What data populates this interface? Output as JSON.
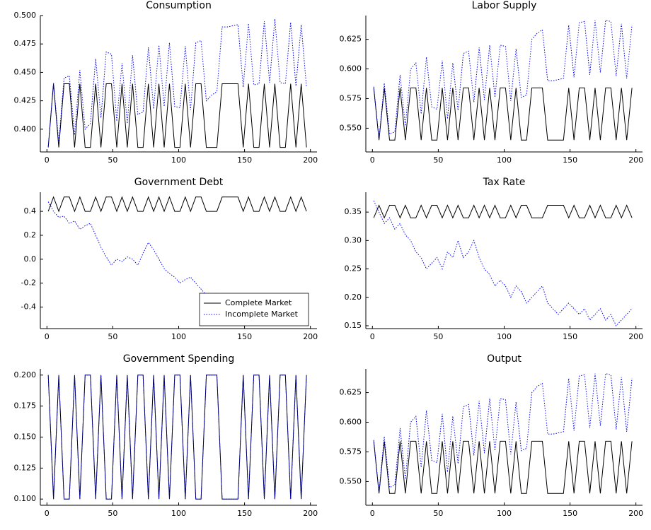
{
  "chart_data": [
    {
      "type": "line",
      "title": "Consumption",
      "xlim": [
        -5,
        205
      ],
      "xticks": [
        0,
        50,
        100,
        150,
        200
      ],
      "ylim": [
        0.38,
        0.5
      ],
      "yticks": [
        {
          "value": 0.4,
          "label": "0.400"
        },
        0.425,
        {
          "value": 0.45,
          "label": "0.450"
        },
        0.475,
        {
          "value": 0.5,
          "label": "0.500"
        }
      ],
      "x": [
        1,
        5,
        9,
        13,
        17,
        21,
        25,
        29,
        33,
        37,
        41,
        45,
        49,
        53,
        57,
        61,
        65,
        69,
        73,
        77,
        81,
        85,
        89,
        93,
        97,
        101,
        105,
        109,
        113,
        117,
        121,
        125,
        129,
        133,
        137,
        141,
        145,
        149,
        153,
        157,
        161,
        165,
        169,
        173,
        177,
        181,
        185,
        189,
        193,
        197
      ],
      "series": [
        {
          "name": "Complete Market",
          "color": "#000000",
          "line_style": "solid",
          "values": [
            0.384,
            0.44,
            0.384,
            0.44,
            0.44,
            0.384,
            0.44,
            0.384,
            0.384,
            0.44,
            0.384,
            0.44,
            0.44,
            0.384,
            0.44,
            0.384,
            0.44,
            0.384,
            0.384,
            0.44,
            0.384,
            0.44,
            0.384,
            0.44,
            0.384,
            0.384,
            0.44,
            0.384,
            0.44,
            0.44,
            0.384,
            0.384,
            0.384,
            0.44,
            0.44,
            0.44,
            0.44,
            0.384,
            0.44,
            0.384,
            0.384,
            0.44,
            0.384,
            0.44,
            0.384,
            0.384,
            0.44,
            0.384,
            0.44,
            0.384
          ]
        },
        {
          "name": "Incomplete Market",
          "color": "#0000ff",
          "line_style": "dotted",
          "values": [
            0.385,
            0.441,
            0.388,
            0.445,
            0.447,
            0.395,
            0.452,
            0.4,
            0.405,
            0.462,
            0.41,
            0.468,
            0.466,
            0.407,
            0.458,
            0.405,
            0.465,
            0.413,
            0.415,
            0.472,
            0.418,
            0.474,
            0.42,
            0.476,
            0.42,
            0.419,
            0.473,
            0.417,
            0.476,
            0.478,
            0.425,
            0.43,
            0.433,
            0.49,
            0.49,
            0.491,
            0.492,
            0.437,
            0.493,
            0.439,
            0.44,
            0.495,
            0.441,
            0.497,
            0.441,
            0.44,
            0.494,
            0.438,
            0.492,
            0.437
          ]
        }
      ]
    },
    {
      "type": "line",
      "title": "Labor Supply",
      "xlim": [
        -5,
        205
      ],
      "xticks": [
        0,
        50,
        100,
        150,
        200
      ],
      "ylim": [
        0.53,
        0.645
      ],
      "yticks": [
        {
          "value": 0.55,
          "label": "0.550"
        },
        0.575,
        {
          "value": 0.6,
          "label": "0.600"
        },
        0.625
      ],
      "x": [
        1,
        5,
        9,
        13,
        17,
        21,
        25,
        29,
        33,
        37,
        41,
        45,
        49,
        53,
        57,
        61,
        65,
        69,
        73,
        77,
        81,
        85,
        89,
        93,
        97,
        101,
        105,
        109,
        113,
        117,
        121,
        125,
        129,
        133,
        137,
        141,
        145,
        149,
        153,
        157,
        161,
        165,
        169,
        173,
        177,
        181,
        185,
        189,
        193,
        197
      ],
      "series": [
        {
          "name": "Complete Market",
          "color": "#000000",
          "line_style": "solid",
          "values": [
            0.584,
            0.54,
            0.584,
            0.54,
            0.54,
            0.584,
            0.54,
            0.584,
            0.584,
            0.54,
            0.584,
            0.54,
            0.54,
            0.584,
            0.54,
            0.584,
            0.54,
            0.584,
            0.584,
            0.54,
            0.584,
            0.54,
            0.584,
            0.54,
            0.584,
            0.584,
            0.54,
            0.584,
            0.54,
            0.54,
            0.584,
            0.584,
            0.584,
            0.54,
            0.54,
            0.54,
            0.54,
            0.584,
            0.54,
            0.584,
            0.584,
            0.54,
            0.584,
            0.54,
            0.584,
            0.584,
            0.54,
            0.584,
            0.54,
            0.584
          ]
        },
        {
          "name": "Incomplete Market",
          "color": "#0000ff",
          "line_style": "dotted",
          "values": [
            0.585,
            0.541,
            0.588,
            0.545,
            0.547,
            0.595,
            0.552,
            0.6,
            0.605,
            0.562,
            0.61,
            0.568,
            0.566,
            0.607,
            0.558,
            0.605,
            0.565,
            0.613,
            0.615,
            0.572,
            0.618,
            0.574,
            0.62,
            0.576,
            0.62,
            0.619,
            0.573,
            0.617,
            0.576,
            0.578,
            0.625,
            0.63,
            0.633,
            0.59,
            0.59,
            0.591,
            0.592,
            0.637,
            0.593,
            0.639,
            0.64,
            0.595,
            0.641,
            0.597,
            0.641,
            0.64,
            0.594,
            0.638,
            0.592,
            0.637
          ]
        }
      ]
    },
    {
      "type": "line",
      "title": "Government Debt",
      "xlim": [
        -5,
        205
      ],
      "xticks": [
        0,
        50,
        100,
        150,
        200
      ],
      "ylim": [
        -0.58,
        0.56
      ],
      "yticks": [
        -0.4,
        -0.2,
        {
          "value": 0,
          "label": "0.0"
        },
        0.2,
        0.4
      ],
      "legend": "bottom-right",
      "x": [
        1,
        5,
        9,
        13,
        17,
        21,
        25,
        29,
        33,
        37,
        41,
        45,
        49,
        53,
        57,
        61,
        65,
        69,
        73,
        77,
        81,
        85,
        89,
        93,
        97,
        101,
        105,
        109,
        113,
        117,
        121,
        125,
        129,
        133,
        137,
        141,
        145,
        149,
        153,
        157,
        161,
        165,
        169,
        173,
        177,
        181,
        185,
        189,
        193,
        197
      ],
      "series": [
        {
          "name": "Complete Market",
          "color": "#000000",
          "line_style": "solid",
          "values": [
            0.4,
            0.52,
            0.4,
            0.52,
            0.52,
            0.4,
            0.52,
            0.4,
            0.4,
            0.52,
            0.4,
            0.52,
            0.52,
            0.4,
            0.52,
            0.4,
            0.52,
            0.4,
            0.4,
            0.52,
            0.4,
            0.52,
            0.4,
            0.52,
            0.4,
            0.4,
            0.52,
            0.4,
            0.52,
            0.52,
            0.4,
            0.4,
            0.4,
            0.52,
            0.52,
            0.52,
            0.52,
            0.4,
            0.52,
            0.4,
            0.4,
            0.52,
            0.4,
            0.52,
            0.4,
            0.4,
            0.52,
            0.4,
            0.52,
            0.4
          ]
        },
        {
          "name": "Incomplete Market",
          "color": "#0000ff",
          "line_style": "dotted",
          "values": [
            0.48,
            0.4,
            0.35,
            0.36,
            0.3,
            0.32,
            0.25,
            0.28,
            0.3,
            0.2,
            0.1,
            0.02,
            -0.05,
            0.0,
            -0.02,
            0.02,
            0.0,
            -0.05,
            0.05,
            0.14,
            0.08,
            0.0,
            -0.08,
            -0.12,
            -0.15,
            -0.2,
            -0.17,
            -0.15,
            -0.2,
            -0.25,
            -0.3,
            -0.32,
            -0.28,
            -0.35,
            -0.36,
            -0.38,
            -0.37,
            -0.4,
            -0.42,
            -0.4,
            -0.43,
            -0.45,
            -0.44,
            -0.47,
            -0.45,
            -0.48,
            -0.5,
            -0.47,
            -0.52,
            -0.48
          ]
        }
      ]
    },
    {
      "type": "line",
      "title": "Tax Rate",
      "xlim": [
        -5,
        205
      ],
      "xticks": [
        0,
        50,
        100,
        150,
        200
      ],
      "ylim": [
        0.145,
        0.385
      ],
      "yticks": [
        0.15,
        {
          "value": 0.2,
          "label": "0.20"
        },
        0.25,
        {
          "value": 0.3,
          "label": "0.30"
        },
        0.35
      ],
      "x": [
        1,
        5,
        9,
        13,
        17,
        21,
        25,
        29,
        33,
        37,
        41,
        45,
        49,
        53,
        57,
        61,
        65,
        69,
        73,
        77,
        81,
        85,
        89,
        93,
        97,
        101,
        105,
        109,
        113,
        117,
        121,
        125,
        129,
        133,
        137,
        141,
        145,
        149,
        153,
        157,
        161,
        165,
        169,
        173,
        177,
        181,
        185,
        189,
        193,
        197
      ],
      "series": [
        {
          "name": "Complete Market",
          "color": "#000000",
          "line_style": "solid",
          "values": [
            0.34,
            0.362,
            0.34,
            0.362,
            0.362,
            0.34,
            0.362,
            0.34,
            0.34,
            0.362,
            0.34,
            0.362,
            0.362,
            0.34,
            0.362,
            0.34,
            0.362,
            0.34,
            0.34,
            0.362,
            0.34,
            0.362,
            0.34,
            0.362,
            0.34,
            0.34,
            0.362,
            0.34,
            0.362,
            0.362,
            0.34,
            0.34,
            0.34,
            0.362,
            0.362,
            0.362,
            0.362,
            0.34,
            0.362,
            0.34,
            0.34,
            0.362,
            0.34,
            0.362,
            0.34,
            0.34,
            0.362,
            0.34,
            0.362,
            0.34
          ]
        },
        {
          "name": "Incomplete Market",
          "color": "#0000ff",
          "line_style": "dotted",
          "values": [
            0.37,
            0.35,
            0.33,
            0.34,
            0.32,
            0.33,
            0.31,
            0.3,
            0.28,
            0.27,
            0.25,
            0.26,
            0.27,
            0.25,
            0.28,
            0.27,
            0.3,
            0.27,
            0.28,
            0.3,
            0.27,
            0.25,
            0.24,
            0.22,
            0.23,
            0.22,
            0.2,
            0.22,
            0.21,
            0.19,
            0.2,
            0.21,
            0.22,
            0.19,
            0.18,
            0.17,
            0.18,
            0.19,
            0.18,
            0.17,
            0.18,
            0.16,
            0.17,
            0.18,
            0.16,
            0.17,
            0.15,
            0.16,
            0.17,
            0.18
          ]
        }
      ]
    },
    {
      "type": "line",
      "title": "Government Spending",
      "xlim": [
        -5,
        205
      ],
      "xticks": [
        0,
        50,
        100,
        150,
        200
      ],
      "ylim": [
        0.095,
        0.205
      ],
      "yticks": [
        {
          "value": 0.1,
          "label": "0.100"
        },
        0.125,
        {
          "value": 0.15,
          "label": "0.150"
        },
        0.175,
        {
          "value": 0.2,
          "label": "0.200"
        }
      ],
      "x": [
        1,
        5,
        9,
        13,
        17,
        21,
        25,
        29,
        33,
        37,
        41,
        45,
        49,
        53,
        57,
        61,
        65,
        69,
        73,
        77,
        81,
        85,
        89,
        93,
        97,
        101,
        105,
        109,
        113,
        117,
        121,
        125,
        129,
        133,
        137,
        141,
        145,
        149,
        153,
        157,
        161,
        165,
        169,
        173,
        177,
        181,
        185,
        189,
        193,
        197
      ],
      "series": [
        {
          "name": "Complete Market",
          "color": "#000000",
          "line_style": "solid",
          "values": [
            0.2,
            0.1,
            0.2,
            0.1,
            0.1,
            0.2,
            0.1,
            0.2,
            0.2,
            0.1,
            0.2,
            0.1,
            0.1,
            0.2,
            0.1,
            0.2,
            0.1,
            0.2,
            0.2,
            0.1,
            0.2,
            0.1,
            0.2,
            0.1,
            0.2,
            0.2,
            0.1,
            0.2,
            0.1,
            0.1,
            0.2,
            0.2,
            0.2,
            0.1,
            0.1,
            0.1,
            0.1,
            0.2,
            0.1,
            0.2,
            0.2,
            0.1,
            0.2,
            0.1,
            0.2,
            0.2,
            0.1,
            0.2,
            0.1,
            0.2
          ]
        },
        {
          "name": "Incomplete Market",
          "color": "#0000ff",
          "line_style": "dotted",
          "values": [
            0.2,
            0.1,
            0.2,
            0.1,
            0.1,
            0.2,
            0.1,
            0.2,
            0.2,
            0.1,
            0.2,
            0.1,
            0.1,
            0.2,
            0.1,
            0.2,
            0.1,
            0.2,
            0.2,
            0.1,
            0.2,
            0.1,
            0.2,
            0.1,
            0.2,
            0.2,
            0.1,
            0.2,
            0.1,
            0.1,
            0.2,
            0.2,
            0.2,
            0.1,
            0.1,
            0.1,
            0.1,
            0.2,
            0.1,
            0.2,
            0.2,
            0.1,
            0.2,
            0.1,
            0.2,
            0.2,
            0.1,
            0.2,
            0.1,
            0.2
          ]
        }
      ]
    },
    {
      "type": "line",
      "title": "Output",
      "xlim": [
        -5,
        205
      ],
      "xticks": [
        0,
        50,
        100,
        150,
        200
      ],
      "ylim": [
        0.53,
        0.645
      ],
      "yticks": [
        {
          "value": 0.55,
          "label": "0.550"
        },
        0.575,
        {
          "value": 0.6,
          "label": "0.600"
        },
        0.625
      ],
      "x": [
        1,
        5,
        9,
        13,
        17,
        21,
        25,
        29,
        33,
        37,
        41,
        45,
        49,
        53,
        57,
        61,
        65,
        69,
        73,
        77,
        81,
        85,
        89,
        93,
        97,
        101,
        105,
        109,
        113,
        117,
        121,
        125,
        129,
        133,
        137,
        141,
        145,
        149,
        153,
        157,
        161,
        165,
        169,
        173,
        177,
        181,
        185,
        189,
        193,
        197
      ],
      "series": [
        {
          "name": "Complete Market",
          "color": "#000000",
          "line_style": "solid",
          "values": [
            0.584,
            0.54,
            0.584,
            0.54,
            0.54,
            0.584,
            0.54,
            0.584,
            0.584,
            0.54,
            0.584,
            0.54,
            0.54,
            0.584,
            0.54,
            0.584,
            0.54,
            0.584,
            0.584,
            0.54,
            0.584,
            0.54,
            0.584,
            0.54,
            0.584,
            0.584,
            0.54,
            0.584,
            0.54,
            0.54,
            0.584,
            0.584,
            0.584,
            0.54,
            0.54,
            0.54,
            0.54,
            0.584,
            0.54,
            0.584,
            0.584,
            0.54,
            0.584,
            0.54,
            0.584,
            0.584,
            0.54,
            0.584,
            0.54,
            0.584
          ]
        },
        {
          "name": "Incomplete Market",
          "color": "#0000ff",
          "line_style": "dotted",
          "values": [
            0.585,
            0.541,
            0.588,
            0.545,
            0.547,
            0.595,
            0.552,
            0.6,
            0.605,
            0.562,
            0.61,
            0.568,
            0.566,
            0.607,
            0.558,
            0.605,
            0.565,
            0.613,
            0.615,
            0.572,
            0.618,
            0.574,
            0.62,
            0.576,
            0.62,
            0.619,
            0.573,
            0.617,
            0.576,
            0.578,
            0.625,
            0.63,
            0.633,
            0.59,
            0.59,
            0.591,
            0.592,
            0.637,
            0.593,
            0.639,
            0.64,
            0.595,
            0.641,
            0.597,
            0.641,
            0.64,
            0.594,
            0.638,
            0.592,
            0.637
          ]
        }
      ]
    }
  ]
}
